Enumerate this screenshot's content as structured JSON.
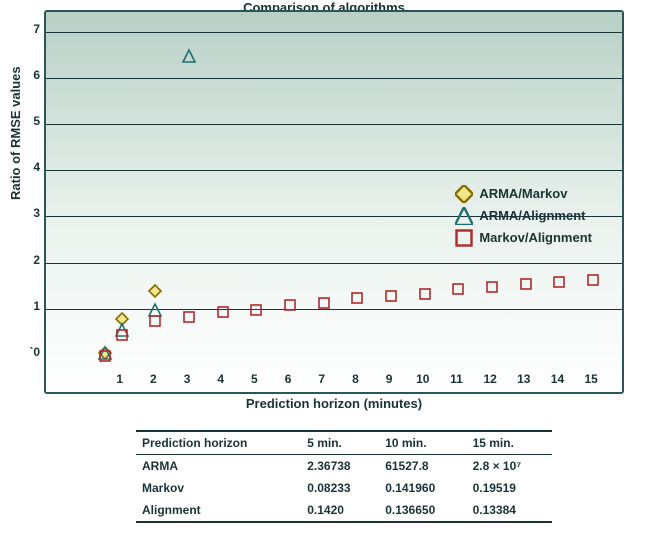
{
  "chart": {
    "type": "scatter",
    "title": "Comparison of algorithms",
    "xlabel": "Prediction horizon (minutes)",
    "ylabel": "Ratio of RMSE values",
    "xlim": [
      0,
      15.5
    ],
    "ylim": [
      -0.2,
      7
    ],
    "xtick_start": 1,
    "xtick_end": 15,
    "xtick_step": 1,
    "ytick_start": 0,
    "ytick_end": 7,
    "ytick_step": 1,
    "ygrid_values": [
      1,
      2,
      3,
      4,
      5,
      6,
      7
    ],
    "origin_label": "`0",
    "background_gradient": [
      "#b8d0c6",
      "#eaf2ee",
      "#ffffff"
    ],
    "border_color": "#2d5555",
    "grid_color": "#1a3333",
    "tick_color": "#1a3333",
    "title_fontsize": 13,
    "label_fontsize": 13,
    "tick_fontsize": 12,
    "marker_size": 12,
    "series": [
      {
        "name": "ARMA/Markov",
        "marker": "diamond",
        "stroke": "#8a6d00",
        "fill": "#f0e68c",
        "stroke_width": 1.6,
        "points": [
          [
            0.5,
            0.05
          ],
          [
            1,
            0.8
          ],
          [
            2,
            1.4
          ]
        ]
      },
      {
        "name": "ARMA/Alignment",
        "marker": "triangle",
        "stroke": "#1f6f6f",
        "fill": "none",
        "stroke_width": 1.6,
        "points": [
          [
            0.5,
            0.05
          ],
          [
            1,
            0.55
          ],
          [
            2,
            1.0
          ],
          [
            3,
            6.5
          ]
        ]
      },
      {
        "name": "Markov/Alignment",
        "marker": "square",
        "stroke": "#b02a2a",
        "fill": "none",
        "stroke_width": 1.6,
        "points": [
          [
            0.5,
            0.0
          ],
          [
            1,
            0.45
          ],
          [
            2,
            0.75
          ],
          [
            3,
            0.85
          ],
          [
            4,
            0.95
          ],
          [
            5,
            1.0
          ],
          [
            6,
            1.1
          ],
          [
            7,
            1.15
          ],
          [
            8,
            1.25
          ],
          [
            9,
            1.3
          ],
          [
            10,
            1.35
          ],
          [
            11,
            1.45
          ],
          [
            12,
            1.5
          ],
          [
            13,
            1.55
          ],
          [
            14,
            1.6
          ],
          [
            15,
            1.65
          ]
        ]
      }
    ],
    "legend_position": "right-middle"
  },
  "table": {
    "columns": [
      "Prediction horizon",
      "5 min.",
      "10 min.",
      "15 min."
    ],
    "rows": [
      [
        "ARMA",
        "2.36738",
        "61527.8",
        "2.8 × 10⁷"
      ],
      [
        "Markov",
        "0.08233",
        "0.141960",
        "0.19519"
      ],
      [
        "Alignment",
        "0.1420",
        "0.136650",
        "0.13384"
      ]
    ],
    "header_border_color": "#1a3333",
    "font_color": "#1a3333",
    "fontsize": 12
  }
}
